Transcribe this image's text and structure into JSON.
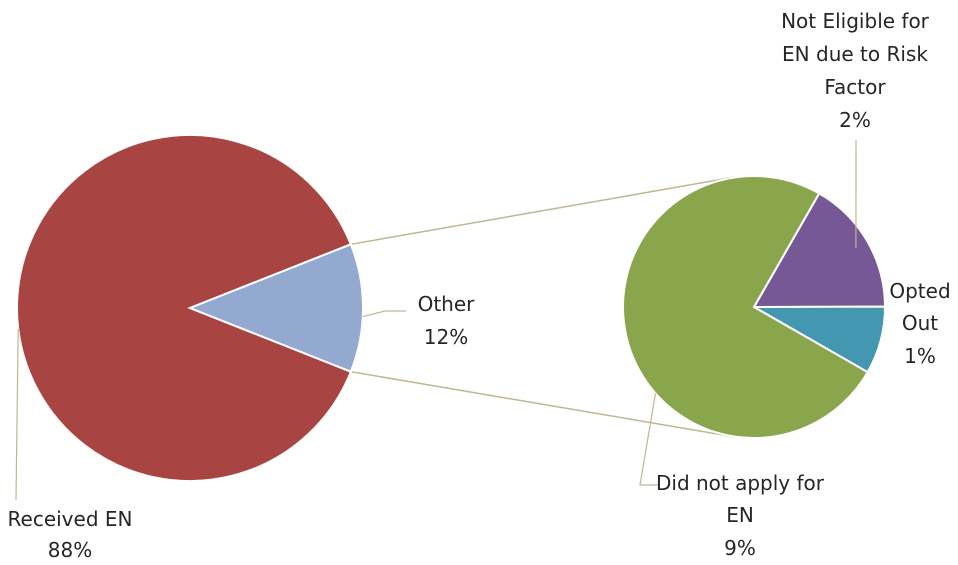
{
  "chart_data": {
    "type": "pie",
    "subtype": "pie-of-pie",
    "title": "",
    "main_pie": {
      "slices": [
        {
          "label": "Received EN",
          "value_label": "88%",
          "value": 88,
          "color": "#a84542"
        },
        {
          "label": "Other",
          "value_label": "12%",
          "value": 12,
          "color": "#93a9d0",
          "exploded": true
        }
      ]
    },
    "secondary_pie": {
      "breakdown_of": "Other",
      "slices": [
        {
          "label": "Did not apply for EN",
          "value_label": "9%",
          "value": 9,
          "color": "#8aa64d"
        },
        {
          "label": "Not Eligible for EN due to Risk Factor",
          "value_label": "2%",
          "value": 2,
          "color": "#755895"
        },
        {
          "label": "Opted Out",
          "value_label": "1%",
          "value": 1,
          "color": "#4497b0"
        }
      ]
    },
    "legend": "none",
    "data_labels": "outside with leader lines"
  }
}
